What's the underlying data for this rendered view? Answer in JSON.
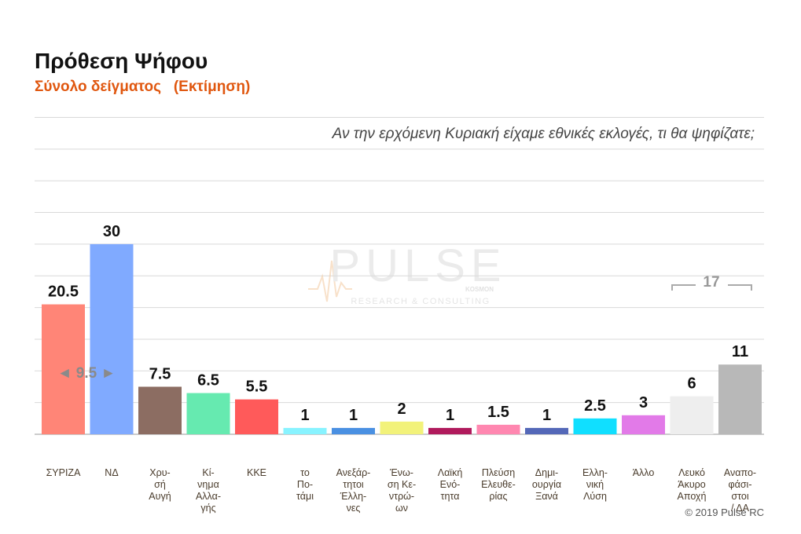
{
  "header": {
    "title": "Πρόθεση Ψήφου",
    "subtitle": "Σύνολο δείγματος   (Εκτίμηση)",
    "question": "Αν την ερχόμενη Κυριακή είχαμε εθνικές εκλογές, τι θα ψηφίζατε;"
  },
  "watermark": {
    "brand": "PULSE",
    "sub": "RESEARCH & CONSULTING",
    "tag": "KOSMON"
  },
  "annotations": {
    "gap_label": "◄ 9.5 ►",
    "bracket_label": "17"
  },
  "footer": {
    "copyright": "© 2019 Pulse RC"
  },
  "chart_data": {
    "type": "bar",
    "title": "Πρόθεση Ψήφου",
    "subtitle": "Σύνολο δείγματος   (Εκτίμηση)",
    "ylim": [
      0,
      50
    ],
    "grid": true,
    "categories": [
      "ΣΥΡΙΖΑ",
      "ΝΔ",
      "Χρυ-σή Αυγή",
      "Κί-νημα Αλλα-γής",
      "ΚΚΕ",
      "το Πο-τάμι",
      "Ανεξάρ-τητοι Έλλη-νες",
      "Ένω-ση Κε-ντρώ-ων",
      "Λαϊκή Ενό-τητα",
      "Πλεύση Ελευθε-ρίας",
      "Δημι-ουργία Ξανά",
      "Ελλη-νική Λύση",
      "Άλλο",
      "Λευκό Άκυρο Αποχή",
      "Αναπο-φάσι-στοι / ΔΑ"
    ],
    "category_lines": [
      [
        "ΣΥΡΙΖΑ"
      ],
      [
        "ΝΔ"
      ],
      [
        "Χρυ-",
        "σή",
        "Αυγή"
      ],
      [
        "Κί-",
        "νημα",
        "Αλλα-",
        "γής"
      ],
      [
        "ΚΚΕ"
      ],
      [
        "το",
        "Πο-",
        "τάμι"
      ],
      [
        "Ανεξάρ-",
        "τητοι",
        "Έλλη-",
        "νες"
      ],
      [
        "Ένω-",
        "ση Κε-",
        "ντρώ-",
        "ων"
      ],
      [
        "Λαϊκή",
        "Ενό-",
        "τητα"
      ],
      [
        "Πλεύση",
        "Ελευθε-",
        "ρίας"
      ],
      [
        "Δημι-",
        "ουργία",
        "Ξανά"
      ],
      [
        "Ελλη-",
        "νική",
        "Λύση"
      ],
      [
        "Άλλο"
      ],
      [
        "Λευκό",
        "Άκυρο",
        "Αποχή"
      ],
      [
        "Αναπο-",
        "φάσι-",
        "στοι",
        "/ ΔΑ"
      ]
    ],
    "values": [
      20.5,
      30,
      7.5,
      6.5,
      5.5,
      1,
      1,
      2,
      1,
      1.5,
      1,
      2.5,
      3,
      6,
      11
    ],
    "value_labels": [
      "20.5",
      "30",
      "7.5",
      "6.5",
      "5.5",
      "1",
      "1",
      "2",
      "1",
      "1.5",
      "1",
      "2.5",
      "3",
      "6",
      "11"
    ],
    "colors": [
      "#ff8577",
      "#80aaff",
      "#8c6d62",
      "#66eab0",
      "#ff5a5a",
      "#88f3ff",
      "#4a90e2",
      "#f2f27a",
      "#b01a5c",
      "#ff87b0",
      "#5468b8",
      "#10dfff",
      "#e27ae8",
      "#eeeeee",
      "#b8b8b8"
    ]
  }
}
